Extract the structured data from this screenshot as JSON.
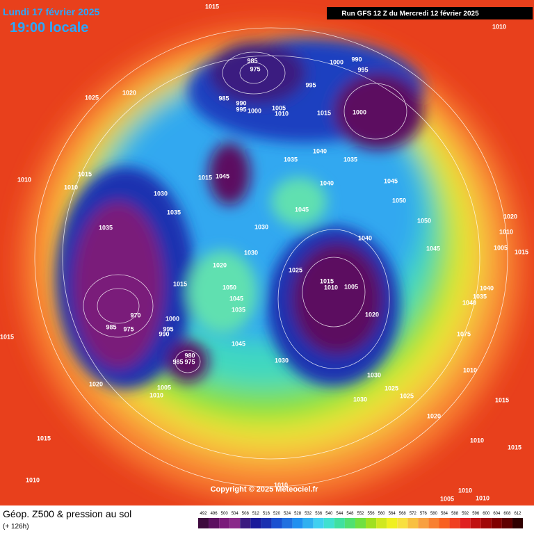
{
  "header": {
    "date": "Lundi 17 février 2025",
    "time": "19:00 locale",
    "run": "Run GFS 12 Z du Mercredi 12 février 2025"
  },
  "copyright": "Copyright © 2025 Meteociel.fr",
  "footer": {
    "title": "Géop. Z500 & pression au sol",
    "lead": "(+ 126h)"
  },
  "legend": {
    "ticks": [
      492,
      496,
      500,
      504,
      508,
      512,
      516,
      520,
      524,
      528,
      532,
      536,
      540,
      544,
      548,
      552,
      556,
      560,
      564,
      568,
      572,
      576,
      580,
      584,
      588,
      592,
      596,
      600,
      604,
      608,
      612
    ],
    "colors": [
      "#3d0a3d",
      "#5c1060",
      "#7a1a7a",
      "#8a2a8a",
      "#3a1a80",
      "#1a1a9a",
      "#1a30b0",
      "#1a50d0",
      "#2070e0",
      "#2090f0",
      "#30b0f0",
      "#40d0f0",
      "#40e0d0",
      "#40e0a0",
      "#50e070",
      "#70e040",
      "#a0e020",
      "#d0e820",
      "#f0f020",
      "#f8e040",
      "#f8c040",
      "#f8a040",
      "#f88030",
      "#f86020",
      "#f04020",
      "#e02020",
      "#c01010",
      "#a00808",
      "#800000",
      "#600000",
      "#300000"
    ]
  },
  "isobar_labels": [
    1015,
    1010,
    1025,
    1020,
    985,
    975,
    990,
    1000,
    995,
    995,
    985,
    990,
    995,
    1000,
    1005,
    1010,
    1015,
    1000,
    1040,
    1035,
    1035,
    1015,
    1045,
    1040,
    1045,
    1050,
    1015,
    1010,
    1010,
    1030,
    1035,
    1045,
    1035,
    1050,
    1030,
    1020,
    1010,
    1005,
    1015,
    1040,
    1045,
    1030,
    1020,
    1025,
    1015,
    1015,
    1010,
    1005,
    1050,
    1040,
    1035,
    1045,
    1040,
    1035,
    1000,
    970,
    985,
    975,
    995,
    990,
    1020,
    1015,
    1075,
    1045,
    980,
    985,
    975,
    1030,
    1010,
    1030,
    1020,
    1005,
    1010,
    1025,
    1025,
    1030,
    1015,
    1020,
    1015,
    1010,
    1015,
    1010,
    1010,
    1010,
    1005,
    1010
  ]
}
